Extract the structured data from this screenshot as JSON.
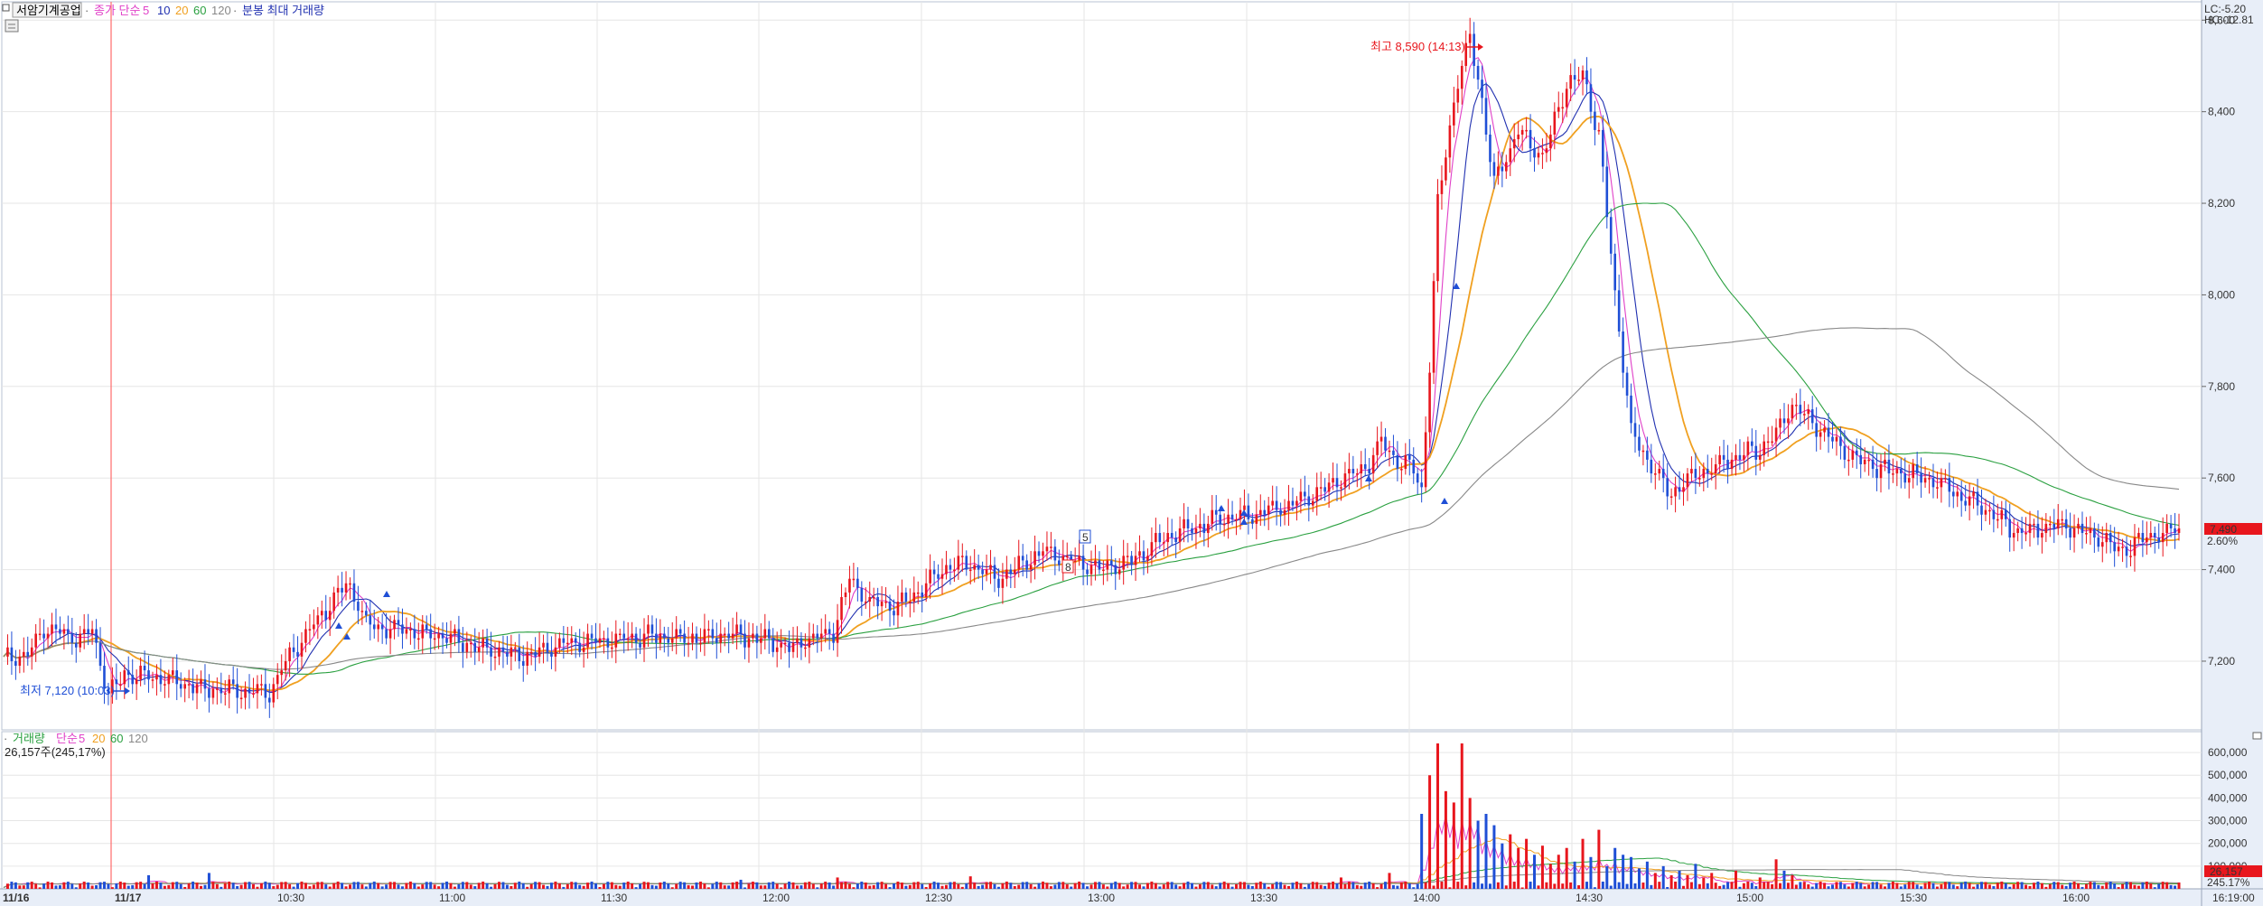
{
  "legend_main": {
    "title": "서암기계공업",
    "ma_label": "종가 단순",
    "ma_periods": [
      "5",
      "10",
      "20",
      "60",
      "120"
    ],
    "extra_label": "분봉 최대 거래량"
  },
  "legend_volume": {
    "title": "거래량",
    "ma_label": "단순",
    "ma_periods": [
      "5",
      "20",
      "60",
      "120"
    ],
    "value_text": "26,157주(245,17%)"
  },
  "corner": {
    "lc": "LC:-5.20",
    "hc": "HC:-12.81"
  },
  "annotations": {
    "high": "최고 8,590 (14:13)",
    "low": "최저 7,120 (10:03)",
    "marker_5": "5",
    "marker_8": "8"
  },
  "current": {
    "price": "7,490",
    "change": "2.60%",
    "volume": "26,157",
    "volume_pct": "245.17%"
  },
  "colors": {
    "up": "#e8161d",
    "down": "#1f4fd6",
    "ma5": "#e040c8",
    "ma10": "#2030b0",
    "ma20": "#f0a020",
    "ma60": "#2aa040",
    "ma120": "#888888",
    "grid": "#e6e6e6",
    "axis_bg": "#e8eef8"
  },
  "chart_data": {
    "type": "candlestick",
    "title": "서암기계공업",
    "x_ticks": [
      "11/16",
      "11/17",
      "10:30",
      "11:00",
      "11:30",
      "12:00",
      "12:30",
      "13:00",
      "13:30",
      "14:00",
      "14:30",
      "15:00",
      "15:30",
      "16:00",
      "16:19:00"
    ],
    "price_ticks": [
      "8,600",
      "8,400",
      "8,200",
      "8,000",
      "7,800",
      "7,600",
      "7,400",
      "7,200"
    ],
    "price_tick_values": [
      8600,
      8400,
      8200,
      8000,
      7800,
      7600,
      7400,
      7200
    ],
    "ylim": [
      7050,
      8640
    ],
    "volume_ticks": [
      "600,000",
      "500,000",
      "400,000",
      "300,000",
      "200,000",
      "100,000"
    ],
    "volume_tick_values": [
      600000,
      500000,
      400000,
      300000,
      200000,
      100000
    ],
    "volume_ylim": [
      0,
      660000
    ],
    "high": {
      "price": 8590,
      "time": "14:13"
    },
    "low": {
      "price": 7120,
      "time": "10:03"
    },
    "close_path": [
      [
        0,
        7205
      ],
      [
        6,
        7215
      ],
      [
        10,
        7270
      ],
      [
        14,
        7260
      ],
      [
        18,
        7250
      ],
      [
        22,
        7265
      ],
      [
        23,
        7230
      ],
      [
        26,
        7130
      ],
      [
        30,
        7170
      ],
      [
        40,
        7160
      ],
      [
        50,
        7140
      ],
      [
        60,
        7135
      ],
      [
        66,
        7130
      ],
      [
        70,
        7200
      ],
      [
        75,
        7260
      ],
      [
        80,
        7310
      ],
      [
        85,
        7370
      ],
      [
        88,
        7330
      ],
      [
        90,
        7280
      ],
      [
        100,
        7265
      ],
      [
        110,
        7250
      ],
      [
        120,
        7225
      ],
      [
        130,
        7210
      ],
      [
        140,
        7240
      ],
      [
        150,
        7245
      ],
      [
        160,
        7255
      ],
      [
        170,
        7250
      ],
      [
        180,
        7260
      ],
      [
        190,
        7245
      ],
      [
        195,
        7230
      ],
      [
        200,
        7250
      ],
      [
        206,
        7260
      ],
      [
        210,
        7380
      ],
      [
        215,
        7330
      ],
      [
        222,
        7320
      ],
      [
        228,
        7360
      ],
      [
        235,
        7410
      ],
      [
        240,
        7410
      ],
      [
        247,
        7380
      ],
      [
        252,
        7405
      ],
      [
        258,
        7440
      ],
      [
        265,
        7420
      ],
      [
        272,
        7400
      ],
      [
        280,
        7420
      ],
      [
        288,
        7470
      ],
      [
        295,
        7490
      ],
      [
        302,
        7510
      ],
      [
        310,
        7520
      ],
      [
        318,
        7540
      ],
      [
        325,
        7560
      ],
      [
        332,
        7600
      ],
      [
        338,
        7620
      ],
      [
        342,
        7680
      ],
      [
        346,
        7640
      ],
      [
        350,
        7620
      ],
      [
        352,
        7570
      ],
      [
        354,
        7850
      ],
      [
        356,
        8200
      ],
      [
        360,
        8420
      ],
      [
        362,
        8500
      ],
      [
        364,
        8560
      ],
      [
        366,
        8480
      ],
      [
        370,
        8240
      ],
      [
        376,
        8360
      ],
      [
        382,
        8300
      ],
      [
        388,
        8460
      ],
      [
        392,
        8480
      ],
      [
        396,
        8350
      ],
      [
        400,
        8000
      ],
      [
        404,
        7700
      ],
      [
        408,
        7640
      ],
      [
        414,
        7560
      ],
      [
        418,
        7600
      ],
      [
        424,
        7620
      ],
      [
        430,
        7650
      ],
      [
        436,
        7660
      ],
      [
        440,
        7700
      ],
      [
        444,
        7760
      ],
      [
        448,
        7730
      ],
      [
        454,
        7680
      ],
      [
        460,
        7640
      ],
      [
        470,
        7610
      ],
      [
        478,
        7600
      ],
      [
        486,
        7560
      ],
      [
        494,
        7520
      ],
      [
        500,
        7480
      ],
      [
        510,
        7500
      ],
      [
        520,
        7470
      ],
      [
        526,
        7440
      ],
      [
        532,
        7470
      ],
      [
        540,
        7490
      ]
    ],
    "volume_peaks": [
      [
        352,
        330000
      ],
      [
        354,
        500000
      ],
      [
        356,
        640000
      ],
      [
        358,
        430000
      ],
      [
        360,
        380000
      ],
      [
        362,
        640000
      ],
      [
        364,
        400000
      ],
      [
        366,
        300000
      ],
      [
        368,
        330000
      ],
      [
        370,
        280000
      ],
      [
        372,
        200000
      ],
      [
        374,
        240000
      ],
      [
        376,
        180000
      ],
      [
        378,
        220000
      ],
      [
        380,
        150000
      ],
      [
        382,
        190000
      ],
      [
        384,
        110000
      ],
      [
        386,
        150000
      ],
      [
        388,
        180000
      ],
      [
        390,
        120000
      ],
      [
        392,
        220000
      ],
      [
        394,
        140000
      ],
      [
        396,
        260000
      ],
      [
        398,
        100000
      ],
      [
        400,
        180000
      ],
      [
        402,
        150000
      ],
      [
        404,
        140000
      ],
      [
        406,
        90000
      ],
      [
        408,
        120000
      ],
      [
        410,
        70000
      ],
      [
        412,
        100000
      ],
      [
        414,
        60000
      ],
      [
        416,
        80000
      ],
      [
        418,
        60000
      ],
      [
        420,
        110000
      ],
      [
        422,
        50000
      ],
      [
        424,
        70000
      ],
      [
        430,
        80000
      ],
      [
        436,
        50000
      ],
      [
        440,
        130000
      ],
      [
        442,
        80000
      ],
      [
        444,
        60000
      ]
    ]
  }
}
